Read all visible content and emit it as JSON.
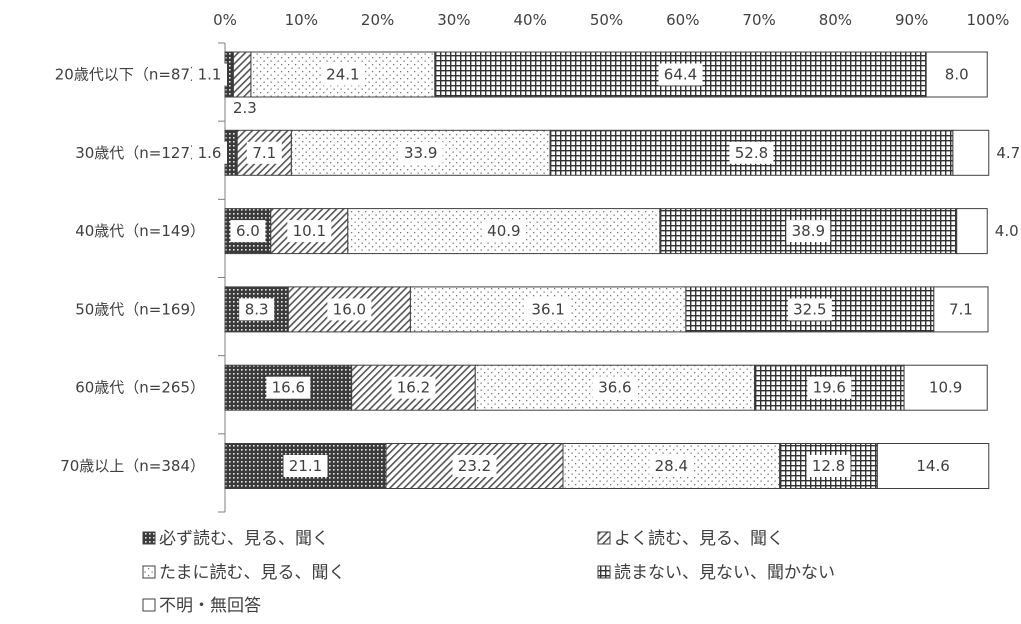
{
  "chart_data": {
    "type": "bar",
    "orientation": "horizontal",
    "stacked": "percent",
    "categories": [
      "20歳代以下（n=87）",
      "30歳代（n=127）",
      "40歳代（n=149）",
      "50歳代（n=169）",
      "60歳代（n=265）",
      "70歳以上（n=384）"
    ],
    "series": [
      {
        "name": "必ず読む、見る、聞く",
        "values": [
          1.1,
          1.6,
          6.0,
          8.3,
          16.6,
          21.1
        ],
        "pattern": "dark-dots"
      },
      {
        "name": "よく読む、見る、聞く",
        "values": [
          2.3,
          7.1,
          10.1,
          16.0,
          16.2,
          23.2
        ],
        "pattern": "diagonal"
      },
      {
        "name": "たまに読む、見る、聞く",
        "values": [
          24.1,
          33.9,
          40.9,
          36.1,
          36.6,
          28.4
        ],
        "pattern": "light-dots"
      },
      {
        "name": "読まない、見ない、聞かない",
        "values": [
          64.4,
          52.8,
          38.9,
          32.5,
          19.6,
          12.8
        ],
        "pattern": "grid"
      },
      {
        "name": "不明・無回答",
        "values": [
          8.0,
          4.7,
          4.0,
          7.1,
          10.9,
          14.6
        ],
        "pattern": "blank"
      }
    ],
    "xaxis": {
      "ticks": [
        "0%",
        "10%",
        "20%",
        "30%",
        "40%",
        "50%",
        "60%",
        "70%",
        "80%",
        "90%",
        "100%"
      ],
      "range": [
        0,
        100
      ],
      "position": "top"
    },
    "grid": false,
    "legend_position": "bottom"
  }
}
